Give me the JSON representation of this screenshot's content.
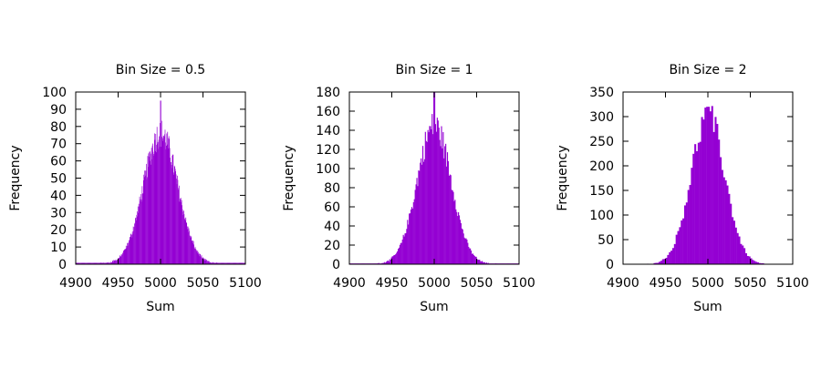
{
  "chart_data": [
    {
      "type": "bar",
      "title": "Bin Size = 0.5",
      "xlabel": "Sum",
      "ylabel": "Frequency",
      "bin_size": 0.5,
      "xlim": [
        4900,
        5100
      ],
      "ylim": [
        0,
        100
      ],
      "xticks": [
        "4900",
        "4950",
        "5000",
        "5050",
        "5100"
      ],
      "yticks": [
        "0",
        "10",
        "20",
        "30",
        "40",
        "50",
        "60",
        "70",
        "80",
        "90",
        "100"
      ],
      "distribution": {
        "mean": 5000,
        "sd": 20,
        "peak": 76,
        "outlier_x": 5000,
        "outlier_y": 95
      },
      "bar_color": "#9400d3"
    },
    {
      "type": "bar",
      "title": "Bin Size = 1",
      "xlabel": "Sum",
      "ylabel": "Frequency",
      "bin_size": 1,
      "xlim": [
        4900,
        5100
      ],
      "ylim": [
        0,
        180
      ],
      "xticks": [
        "4900",
        "4950",
        "5000",
        "5050",
        "5100"
      ],
      "yticks": [
        "0",
        "20",
        "40",
        "60",
        "80",
        "100",
        "120",
        "140",
        "160",
        "180"
      ],
      "distribution": {
        "mean": 5000,
        "sd": 20,
        "peak": 145,
        "outlier_x": 5000,
        "outlier_y": 180
      },
      "bar_color": "#9400d3"
    },
    {
      "type": "bar",
      "title": "Bin Size = 2",
      "xlabel": "Sum",
      "ylabel": "Frequency",
      "bin_size": 2,
      "xlim": [
        4900,
        5100
      ],
      "ylim": [
        0,
        350
      ],
      "xticks": [
        "4900",
        "4950",
        "5000",
        "5050",
        "5100"
      ],
      "yticks": [
        "0",
        "50",
        "100",
        "150",
        "200",
        "250",
        "300",
        "350"
      ],
      "distribution": {
        "mean": 5000,
        "sd": 20,
        "peak": 300,
        "outlier_x": 5000,
        "outlier_y": 320
      },
      "bar_color": "#9400d3"
    }
  ]
}
